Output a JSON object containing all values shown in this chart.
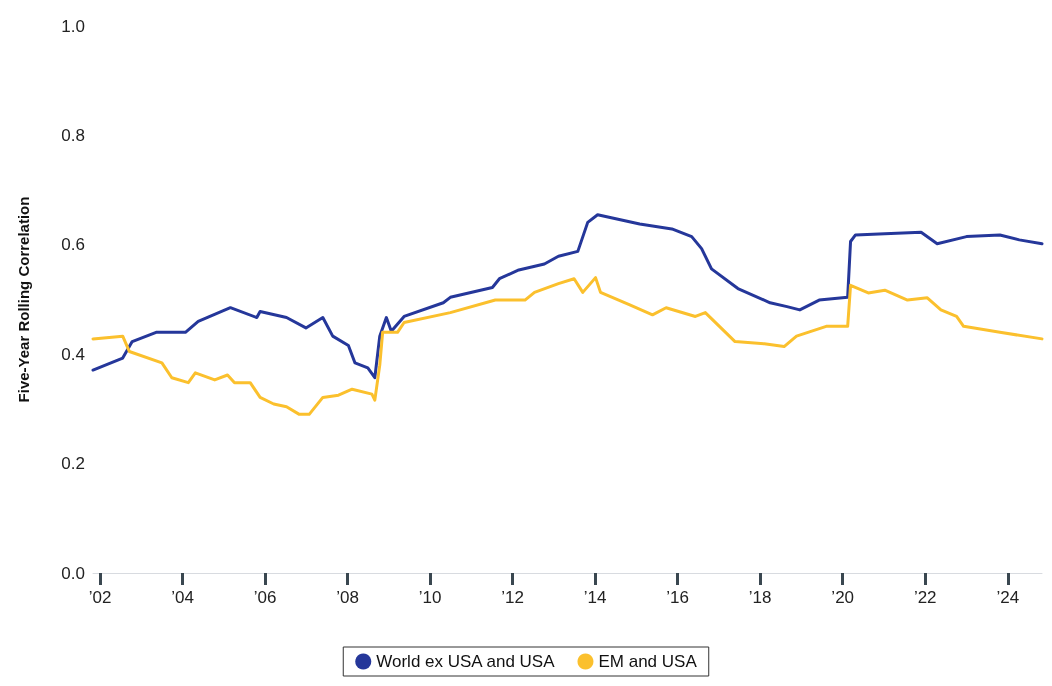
{
  "chart_data": {
    "type": "line",
    "ylabel": "Five-Year Rolling Correlation",
    "xlim": [
      2001.83,
      2024.83
    ],
    "xticks": [
      {
        "value": 2002,
        "label": "’02"
      },
      {
        "value": 2004,
        "label": "’04"
      },
      {
        "value": 2006,
        "label": "’06"
      },
      {
        "value": 2008,
        "label": "’08"
      },
      {
        "value": 2010,
        "label": "’10"
      },
      {
        "value": 2012,
        "label": "’12"
      },
      {
        "value": 2014,
        "label": "’14"
      },
      {
        "value": 2016,
        "label": "’16"
      },
      {
        "value": 2018,
        "label": "’18"
      },
      {
        "value": 2020,
        "label": "’20"
      },
      {
        "value": 2022,
        "label": "’22"
      },
      {
        "value": 2024,
        "label": "’24"
      }
    ],
    "ylim": [
      0,
      1
    ],
    "yticks": [
      {
        "value": 0,
        "label": "0.0"
      },
      0.2,
      0.4,
      0.6,
      0.8,
      {
        "value": 1,
        "label": "1.0"
      }
    ],
    "grid": false,
    "legend": "bottom",
    "marker": "none",
    "line_style": "solid",
    "series": [
      {
        "name": "World ex USA and USA",
        "color": "#25379a",
        "x": [
          2001.83,
          2002.55,
          2002.78,
          2003.36,
          2004.07,
          2004.38,
          2005.16,
          2005.8,
          2005.88,
          2006.52,
          2006.99,
          2007.4,
          2007.64,
          2008.02,
          2008.18,
          2008.49,
          2008.66,
          2008.78,
          2008.94,
          2009.06,
          2009.37,
          2010.32,
          2010.49,
          2011.51,
          2011.68,
          2012.15,
          2012.77,
          2013.11,
          2013.58,
          2013.82,
          2014.06,
          2015.08,
          2015.86,
          2016.34,
          2016.58,
          2016.82,
          2017.46,
          2018.24,
          2018.65,
          2018.96,
          2019.43,
          2020.12,
          2020.19,
          2020.31,
          2021.02,
          2021.9,
          2022.29,
          2023.0,
          2023.81,
          2024.28,
          2024.83
        ],
        "values": [
          0.371,
          0.393,
          0.423,
          0.44,
          0.44,
          0.46,
          0.485,
          0.467,
          0.478,
          0.467,
          0.448,
          0.467,
          0.433,
          0.416,
          0.384,
          0.375,
          0.357,
          0.433,
          0.467,
          0.442,
          0.469,
          0.494,
          0.504,
          0.522,
          0.538,
          0.554,
          0.565,
          0.579,
          0.588,
          0.641,
          0.655,
          0.638,
          0.629,
          0.615,
          0.593,
          0.556,
          0.52,
          0.494,
          0.487,
          0.481,
          0.499,
          0.504,
          0.606,
          0.618,
          0.62,
          0.623,
          0.602,
          0.615,
          0.618,
          0.609,
          0.602
        ]
      },
      {
        "name": "EM and USA",
        "color": "#fbc02d",
        "x": [
          2001.83,
          2002.55,
          2002.71,
          2003.5,
          2003.74,
          2004.14,
          2004.31,
          2004.78,
          2005.09,
          2005.26,
          2005.64,
          2005.88,
          2006.21,
          2006.52,
          2006.83,
          2007.07,
          2007.4,
          2007.78,
          2008.11,
          2008.59,
          2008.66,
          2008.78,
          2008.85,
          2009.21,
          2009.37,
          2010.49,
          2011.58,
          2012.3,
          2012.53,
          2013.11,
          2013.49,
          2013.7,
          2014.01,
          2014.13,
          2014.84,
          2015.39,
          2015.72,
          2016.43,
          2016.67,
          2017.39,
          2018.1,
          2018.58,
          2018.88,
          2019.6,
          2020.12,
          2020.19,
          2020.62,
          2021.02,
          2021.57,
          2022.05,
          2022.38,
          2022.76,
          2022.93,
          2023.81,
          2024.83
        ],
        "values": [
          0.428,
          0.433,
          0.405,
          0.384,
          0.357,
          0.348,
          0.366,
          0.353,
          0.362,
          0.348,
          0.348,
          0.321,
          0.309,
          0.304,
          0.29,
          0.29,
          0.321,
          0.325,
          0.336,
          0.327,
          0.316,
          0.38,
          0.44,
          0.44,
          0.458,
          0.476,
          0.499,
          0.499,
          0.513,
          0.529,
          0.538,
          0.513,
          0.54,
          0.513,
          0.49,
          0.472,
          0.485,
          0.469,
          0.476,
          0.423,
          0.419,
          0.414,
          0.433,
          0.451,
          0.451,
          0.526,
          0.512,
          0.517,
          0.499,
          0.503,
          0.481,
          0.469,
          0.451,
          0.44,
          0.428
        ]
      }
    ]
  }
}
